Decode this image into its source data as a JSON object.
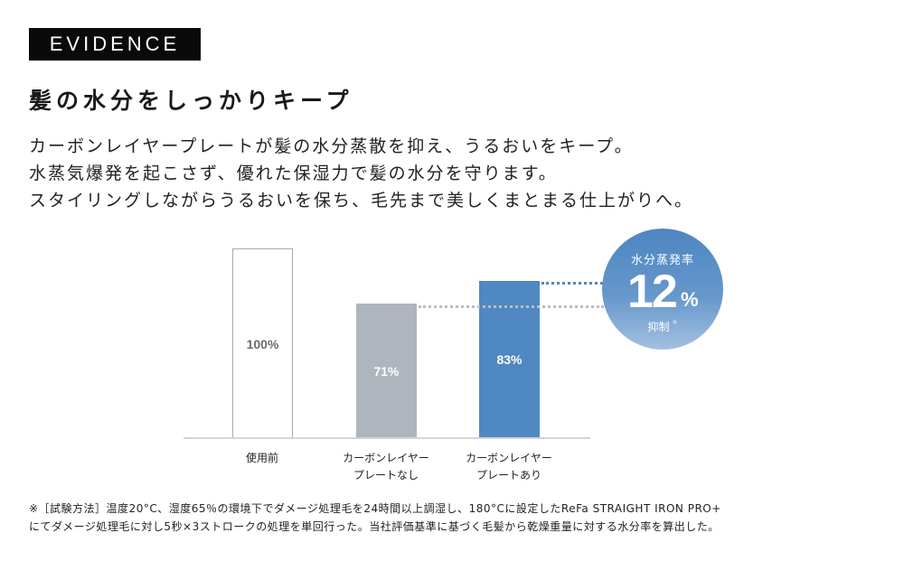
{
  "badge": {
    "label": "EVIDENCE"
  },
  "heading": "髪の水分をしっかりキープ",
  "lead": {
    "lines": [
      "カーボンレイヤープレートが髪の水分蒸散を抑え、うるおいをキープ。",
      "水蒸気爆発を起こさず、優れた保湿力で髪の水分を守ります。",
      "スタイリングしながらうるおいを保ち、毛先まで美しくまとまる仕上がりへ。"
    ]
  },
  "chart_data": {
    "type": "bar",
    "title": "",
    "categories": [
      "使用前",
      "カーボンレイヤープレートなし",
      "カーボンレイヤープレートあり"
    ],
    "values": [
      100,
      71,
      83
    ],
    "value_labels": [
      "100%",
      "71%",
      "83%"
    ],
    "xlabel": "",
    "ylabel": "",
    "ylim": [
      0,
      100
    ],
    "grid": false,
    "colors": [
      "#ffffff",
      "#aeb5bd",
      "#4f88c2"
    ],
    "annotations": [
      {
        "text": "水分蒸発率 12% 抑制※",
        "type": "callout-circle",
        "color": "#4f88c2"
      }
    ]
  },
  "bars": [
    {
      "label_line1": "使用前",
      "label_line2": "",
      "value": "100%"
    },
    {
      "label_line1": "カーボンレイヤー",
      "label_line2": "プレートなし",
      "value": "71%"
    },
    {
      "label_line1": "カーボンレイヤー",
      "label_line2": "プレートあり",
      "value": "83%"
    }
  ],
  "callout": {
    "top": "水分蒸発率",
    "number": "12",
    "unit": "%",
    "bottom": "抑制",
    "note_mark": "※"
  },
  "footnote": {
    "lines": [
      "※［試験方法］温度20°C、湿度65％の環境下でダメージ処理毛を24時間以上調湿し、180°Cに設定したReFa STRAIGHT IRON PRO+",
      "にてダメージ処理毛に対し5秒×3ストロークの処理を単回行った。当社評価基準に基づく毛髪から乾燥重量に対する水分率を算出した。"
    ]
  }
}
